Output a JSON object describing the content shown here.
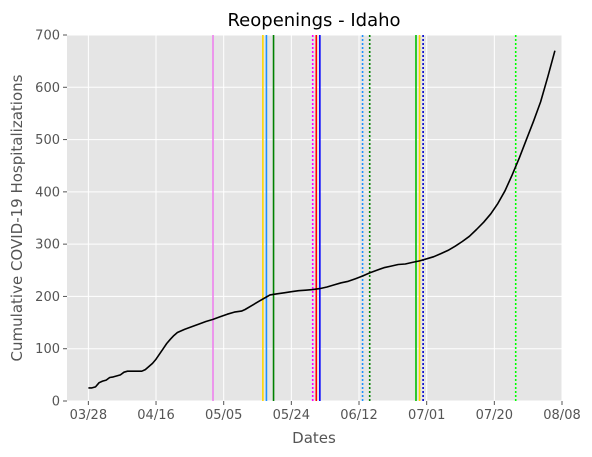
{
  "chart_data": {
    "type": "line",
    "title": "Reopenings - Idaho",
    "xlabel": "Dates",
    "ylabel": "Cumulative COVID-19 Hospitalizations",
    "x_ticks": [
      "03/28",
      "04/16",
      "05/05",
      "05/24",
      "06/12",
      "07/01",
      "07/20",
      "08/08"
    ],
    "y_ticks": [
      0,
      100,
      200,
      300,
      400,
      500,
      600,
      700
    ],
    "ylim": [
      0,
      700
    ],
    "xlim": [
      "03/22",
      "08/08"
    ],
    "grid": true,
    "style": "ggplot",
    "series": [
      {
        "color": "#000000",
        "points": [
          [
            "03/28",
            25
          ],
          [
            "03/29",
            25
          ],
          [
            "03/30",
            27
          ],
          [
            "03/31",
            35
          ],
          [
            "04/01",
            38
          ],
          [
            "04/02",
            40
          ],
          [
            "04/03",
            45
          ],
          [
            "04/04",
            46
          ],
          [
            "04/05",
            48
          ],
          [
            "04/06",
            50
          ],
          [
            "04/07",
            55
          ],
          [
            "04/08",
            57
          ],
          [
            "04/09",
            57
          ],
          [
            "04/10",
            57
          ],
          [
            "04/11",
            57
          ],
          [
            "04/12",
            57
          ],
          [
            "04/13",
            60
          ],
          [
            "04/14",
            66
          ],
          [
            "04/15",
            72
          ],
          [
            "04/16",
            80
          ],
          [
            "04/17",
            90
          ],
          [
            "04/18",
            100
          ],
          [
            "04/19",
            110
          ],
          [
            "04/20",
            118
          ],
          [
            "04/21",
            125
          ],
          [
            "04/22",
            131
          ],
          [
            "04/24",
            137
          ],
          [
            "04/26",
            142
          ],
          [
            "04/28",
            147
          ],
          [
            "04/30",
            152
          ],
          [
            "05/02",
            156
          ],
          [
            "05/04",
            161
          ],
          [
            "05/06",
            166
          ],
          [
            "05/08",
            170
          ],
          [
            "05/10",
            172
          ],
          [
            "05/11",
            175
          ],
          [
            "05/13",
            183
          ],
          [
            "05/15",
            191
          ],
          [
            "05/17",
            199
          ],
          [
            "05/18",
            203
          ],
          [
            "05/20",
            205
          ],
          [
            "05/22",
            207
          ],
          [
            "05/24",
            209
          ],
          [
            "05/26",
            211
          ],
          [
            "05/28",
            212
          ],
          [
            "05/30",
            213
          ],
          [
            "06/01",
            215
          ],
          [
            "06/03",
            218
          ],
          [
            "06/05",
            222
          ],
          [
            "06/07",
            226
          ],
          [
            "06/09",
            229
          ],
          [
            "06/11",
            234
          ],
          [
            "06/13",
            239
          ],
          [
            "06/15",
            245
          ],
          [
            "06/17",
            250
          ],
          [
            "06/19",
            255
          ],
          [
            "06/21",
            258
          ],
          [
            "06/23",
            261
          ],
          [
            "06/25",
            262
          ],
          [
            "06/27",
            265
          ],
          [
            "06/29",
            268
          ],
          [
            "07/01",
            272
          ],
          [
            "07/03",
            276
          ],
          [
            "07/05",
            282
          ],
          [
            "07/07",
            288
          ],
          [
            "07/09",
            296
          ],
          [
            "07/11",
            305
          ],
          [
            "07/13",
            315
          ],
          [
            "07/15",
            328
          ],
          [
            "07/17",
            342
          ],
          [
            "07/19",
            358
          ],
          [
            "07/21",
            378
          ],
          [
            "07/23",
            402
          ],
          [
            "07/25",
            432
          ],
          [
            "07/27",
            465
          ],
          [
            "07/29",
            500
          ],
          [
            "07/31",
            535
          ],
          [
            "08/02",
            572
          ],
          [
            "08/04",
            620
          ],
          [
            "08/06",
            670
          ]
        ]
      }
    ],
    "vertical_lines": [
      {
        "date": "05/02",
        "color": "#ee82ee",
        "style": "solid"
      },
      {
        "date": "05/16",
        "color": "#ffd700",
        "style": "solid"
      },
      {
        "date": "05/17",
        "color": "#1e90ff",
        "style": "solid"
      },
      {
        "date": "05/19",
        "color": "#008000",
        "style": "solid"
      },
      {
        "date": "05/30",
        "color": "#ff00ff",
        "style": "dotted"
      },
      {
        "date": "05/31",
        "color": "#ff0000",
        "style": "solid"
      },
      {
        "date": "06/01",
        "color": "#0000ff",
        "style": "solid"
      },
      {
        "date": "06/13",
        "color": "#1e90ff",
        "style": "dotted"
      },
      {
        "date": "06/15",
        "color": "#008000",
        "style": "dotted"
      },
      {
        "date": "06/28",
        "color": "#00c000",
        "style": "solid"
      },
      {
        "date": "06/29",
        "color": "#ffd700",
        "style": "solid"
      },
      {
        "date": "06/30",
        "color": "#0000cd",
        "style": "dotted"
      },
      {
        "date": "07/26",
        "color": "#00ff00",
        "style": "dotted"
      }
    ]
  }
}
